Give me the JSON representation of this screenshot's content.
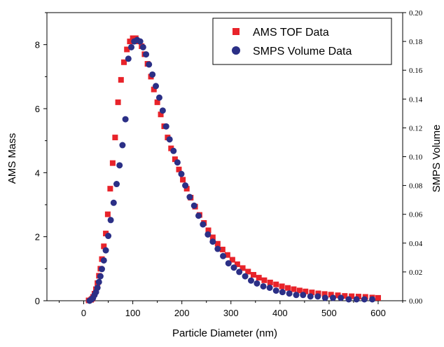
{
  "chart_data": {
    "type": "scatter",
    "xlabel": "Particle Diameter (nm)",
    "ylabel_left": "AMS Mass",
    "ylabel_right": "SMPS Volume",
    "xlim": [
      -75,
      650
    ],
    "ylim_left": [
      0,
      9.0
    ],
    "ylim_right": [
      0,
      0.2
    ],
    "xticks": [
      0,
      100,
      200,
      300,
      400,
      500,
      600
    ],
    "yticks_left": [
      0,
      2,
      4,
      6,
      8
    ],
    "yticks_right": [
      "0.00",
      "0.02",
      "0.04",
      "0.06",
      "0.08",
      "0.10",
      "0.12",
      "0.14",
      "0.16",
      "0.18",
      "0.20"
    ],
    "legend_position": "top-right",
    "grid": false,
    "series": [
      {
        "name": "AMS TOF Data",
        "marker": "square",
        "color": "#e8232a",
        "axis": "left",
        "x": [
          10,
          15,
          17,
          19,
          22,
          25,
          28,
          31,
          34,
          37,
          41,
          45,
          49,
          54,
          59,
          64,
          70,
          76,
          82,
          88,
          94,
          100,
          106,
          112,
          118,
          124,
          130,
          137,
          143,
          150,
          157,
          164,
          171,
          178,
          186,
          194,
          202,
          210,
          218,
          227,
          236,
          245,
          254,
          263,
          273,
          283,
          293,
          303,
          313,
          324,
          335,
          346,
          357,
          368,
          380,
          392,
          404,
          416,
          428,
          440,
          452,
          465,
          478,
          491,
          504,
          518,
          532,
          546,
          560,
          574,
          588,
          600
        ],
        "values": [
          0.01,
          0.03,
          0.06,
          0.12,
          0.22,
          0.36,
          0.55,
          0.78,
          1.0,
          1.3,
          1.7,
          2.1,
          2.7,
          3.5,
          4.3,
          5.1,
          6.2,
          6.9,
          7.45,
          7.85,
          8.1,
          8.2,
          8.2,
          8.1,
          7.95,
          7.7,
          7.4,
          7.0,
          6.6,
          6.2,
          5.82,
          5.45,
          5.1,
          4.76,
          4.42,
          4.1,
          3.78,
          3.5,
          3.22,
          2.94,
          2.68,
          2.43,
          2.2,
          1.98,
          1.78,
          1.6,
          1.43,
          1.28,
          1.14,
          1.02,
          0.91,
          0.81,
          0.72,
          0.64,
          0.57,
          0.51,
          0.45,
          0.4,
          0.36,
          0.32,
          0.29,
          0.26,
          0.23,
          0.21,
          0.19,
          0.17,
          0.15,
          0.14,
          0.13,
          0.12,
          0.1,
          0.09
        ]
      },
      {
        "name": "SMPS Volume Data",
        "marker": "circle",
        "color": "#2b2f86",
        "axis": "right",
        "x": [
          12,
          16,
          19,
          22,
          25,
          28,
          31,
          34,
          37,
          41,
          45,
          50,
          55,
          61,
          67,
          73,
          79,
          85,
          91,
          97,
          103,
          109,
          115,
          121,
          127,
          133,
          140,
          147,
          154,
          161,
          168,
          175,
          183,
          191,
          199,
          207,
          216,
          225,
          234,
          243,
          253,
          263,
          273,
          284,
          295,
          306,
          317,
          329,
          341,
          353,
          366,
          379,
          392,
          405,
          419,
          433,
          447,
          462,
          477,
          492,
          508,
          524,
          540,
          556,
          572,
          588
        ],
        "values": [
          0.0,
          0.001,
          0.002,
          0.004,
          0.006,
          0.009,
          0.013,
          0.017,
          0.022,
          0.028,
          0.035,
          0.045,
          0.056,
          0.068,
          0.081,
          0.094,
          0.108,
          0.126,
          0.168,
          0.176,
          0.18,
          0.181,
          0.18,
          0.176,
          0.171,
          0.164,
          0.157,
          0.149,
          0.141,
          0.132,
          0.121,
          0.112,
          0.104,
          0.096,
          0.088,
          0.08,
          0.072,
          0.066,
          0.059,
          0.053,
          0.046,
          0.041,
          0.036,
          0.031,
          0.026,
          0.023,
          0.02,
          0.017,
          0.014,
          0.012,
          0.01,
          0.009,
          0.007,
          0.006,
          0.005,
          0.004,
          0.004,
          0.003,
          0.003,
          0.002,
          0.002,
          0.002,
          0.001,
          0.001,
          0.001,
          0.001
        ]
      }
    ]
  }
}
